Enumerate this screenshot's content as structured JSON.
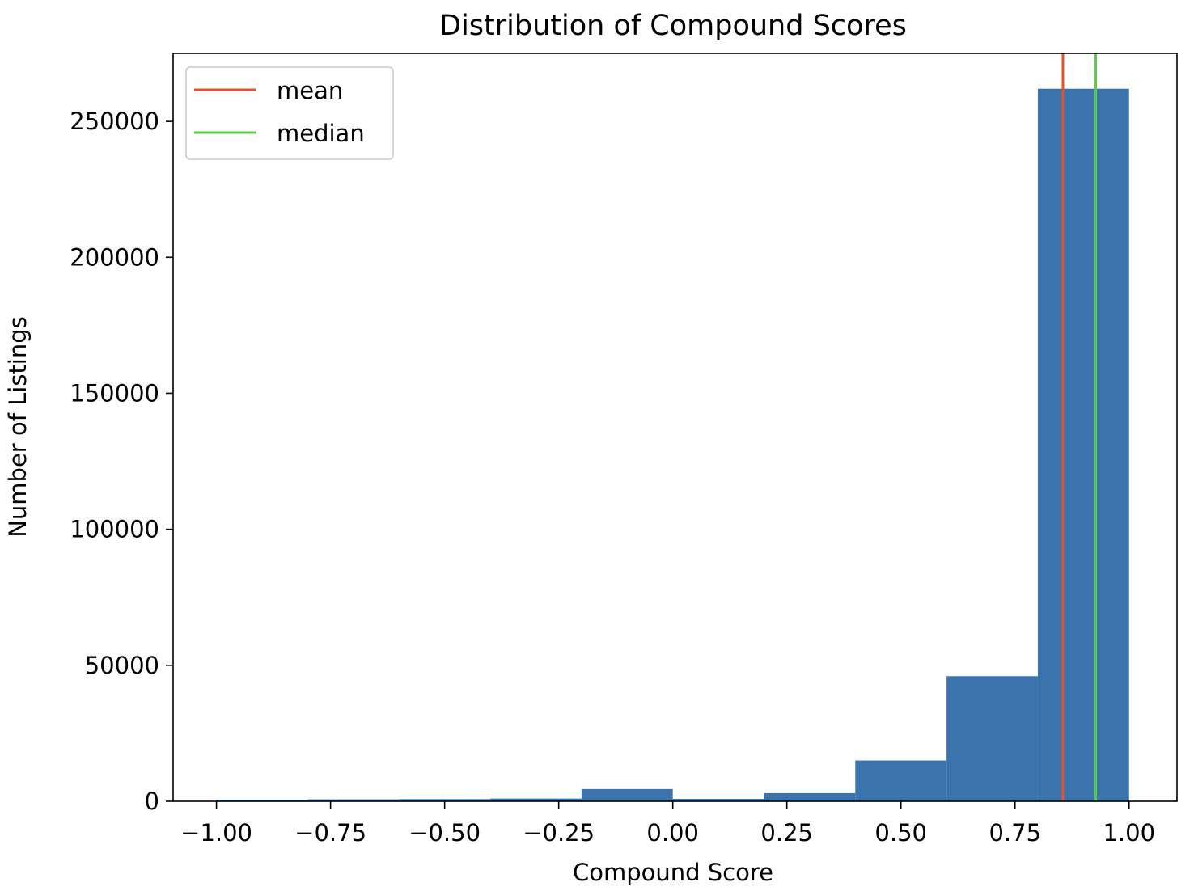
{
  "chart_data": {
    "type": "bar",
    "title": "Distribution of Compound Scores",
    "xlabel": "Compound Score",
    "ylabel": "Number of Listings",
    "xlim": [
      -1.095,
      1.105
    ],
    "ylim": [
      0,
      275000
    ],
    "x_ticks": [
      -1.0,
      -0.75,
      -0.5,
      -0.25,
      0.0,
      0.25,
      0.5,
      0.75,
      1.0
    ],
    "x_tick_labels": [
      "−1.00",
      "−0.75",
      "−0.50",
      "−0.25",
      "0.00",
      "0.25",
      "0.50",
      "0.75",
      "1.00"
    ],
    "y_ticks": [
      0,
      50000,
      100000,
      150000,
      200000,
      250000
    ],
    "y_tick_labels": [
      "0",
      "50000",
      "100000",
      "150000",
      "200000",
      "250000"
    ],
    "bin_edges": [
      -1.0,
      -0.8,
      -0.6,
      -0.4,
      -0.2,
      0.0,
      0.2,
      0.4,
      0.6,
      0.8,
      1.0
    ],
    "series": [
      {
        "values": [
          600,
          700,
          800,
          1000,
          4500,
          900,
          3000,
          15000,
          46000,
          262000
        ],
        "color": "#3a72ac"
      }
    ],
    "reference_lines": [
      {
        "name": "mean",
        "x": 0.855,
        "color": "#e4522b"
      },
      {
        "name": "median",
        "x": 0.927,
        "color": "#5dc94b"
      }
    ],
    "legend": {
      "position": "top-left",
      "entries": [
        "mean",
        "median"
      ]
    },
    "grid": false
  }
}
